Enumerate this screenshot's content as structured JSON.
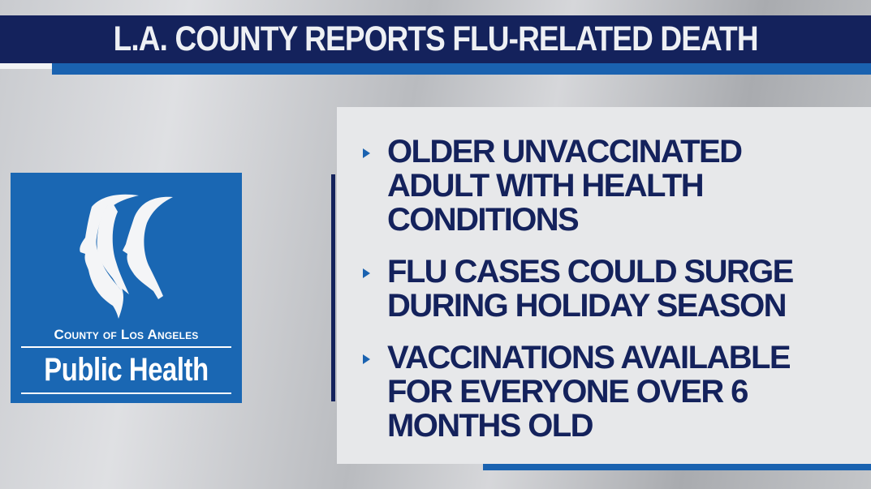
{
  "headline": "L.A. COUNTY REPORTS FLU-RELATED DEATH",
  "logo": {
    "line1": "County of Los Angeles",
    "line2": "Public Health",
    "icon": "three-faces-profile-icon"
  },
  "bullets": [
    {
      "text": "OLDER UNVACCINATED ADULT WITH HEALTH CONDITIONS"
    },
    {
      "text": "FLU CASES COULD SURGE DURING HOLIDAY SEASON"
    },
    {
      "text": "VACCINATIONS AVAILABLE FOR EVERYONE OVER 6 MONTHS OLD"
    }
  ],
  "colors": {
    "navy": "#14225c",
    "blue": "#1a62b0",
    "logo_blue": "#1a67b3",
    "panel": "#e7e8ea"
  }
}
